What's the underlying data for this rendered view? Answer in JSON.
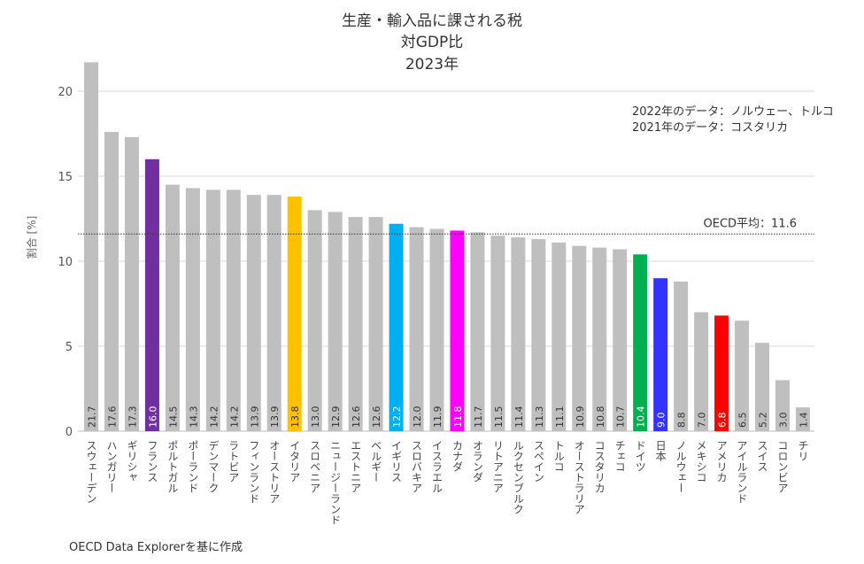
{
  "chart_data": {
    "type": "bar",
    "title": [
      "生産・輸入品に課される税",
      "対GDP比",
      "2023年"
    ],
    "ylabel": "割合 [%]",
    "xlabel": "",
    "ylim": [
      0,
      22
    ],
    "yticks": [
      0,
      5,
      10,
      15,
      20
    ],
    "grid": true,
    "categories": [
      "スウェーデン",
      "ハンガリー",
      "ギリシャ",
      "フランス",
      "ポルトガル",
      "ポーランド",
      "デンマーク",
      "ラトビア",
      "フィンランド",
      "オーストリア",
      "イタリア",
      "スロベニア",
      "ニュージーランド",
      "エストニア",
      "ベルギー",
      "イギリス",
      "スロバキア",
      "イスラエル",
      "カナダ",
      "オランダ",
      "リトアニア",
      "ルクセンブルク",
      "スペイン",
      "トルコ",
      "オーストラリア",
      "コスタリカ",
      "チェコ",
      "ドイツ",
      "日本",
      "ノルウェー",
      "メキシコ",
      "アメリカ",
      "アイルランド",
      "スイス",
      "コロンビア",
      "チリ"
    ],
    "values": [
      21.7,
      17.6,
      17.3,
      16.0,
      14.5,
      14.3,
      14.2,
      14.2,
      13.9,
      13.9,
      13.8,
      13.0,
      12.9,
      12.6,
      12.6,
      12.2,
      12.0,
      11.9,
      11.8,
      11.7,
      11.5,
      11.4,
      11.3,
      11.1,
      10.9,
      10.8,
      10.7,
      10.4,
      9.0,
      8.8,
      7.0,
      6.8,
      6.5,
      5.2,
      3.0,
      1.4
    ],
    "value_labels": [
      "21.7",
      "17.6",
      "17.3",
      "16.0",
      "14.5",
      "14.3",
      "14.2",
      "14.2",
      "13.9",
      "13.9",
      "13.8",
      "13.0",
      "12.9",
      "12.6",
      "12.6",
      "12.2",
      "12.0",
      "11.9",
      "11.8",
      "11.7",
      "11.5",
      "11.4",
      "11.3",
      "11.1",
      "10.9",
      "10.8",
      "10.7",
      "10.4",
      "9.0",
      "8.8",
      "7.0",
      "6.8",
      "6.5",
      "5.2",
      "3.0",
      "1.4"
    ],
    "default_color": "#bfbfbf",
    "highlight_colors": {
      "フランス": "#7030a0",
      "イタリア": "#ffc000",
      "イギリス": "#00b0f0",
      "カナダ": "#ff00ff",
      "ドイツ": "#00b050",
      "日本": "#3333ff",
      "アメリカ": "#ff0000"
    },
    "reference_line": {
      "value": 11.6,
      "label": "OECD平均：11.6"
    },
    "annotations": [
      "2022年のデータ：ノルウェー、トルコ",
      "2021年のデータ：コスタリカ"
    ],
    "source": "OECD Data Explorerを基に作成"
  }
}
